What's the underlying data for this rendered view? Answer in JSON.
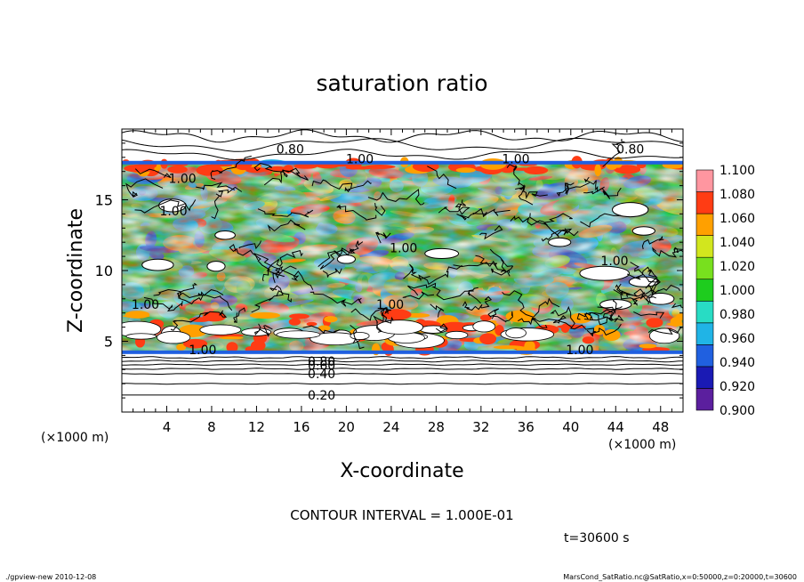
{
  "footer": {
    "left": "./gpview-new  2010-12-08",
    "right": "MarsCond_SatRatio.nc@SatRatio,x=0:50000,z=0:20000,t=30600"
  },
  "chart_data": {
    "type": "heatmap",
    "title": "saturation ratio",
    "xlabel": "X-coordinate",
    "ylabel": "Z-coordinate",
    "x_units_left": "(×1000 m)",
    "x_units_right": "(×1000 m)",
    "xlim": [
      0,
      50
    ],
    "ylim": [
      0,
      20
    ],
    "x_ticks": [
      4,
      8,
      12,
      16,
      20,
      24,
      28,
      32,
      36,
      40,
      44,
      48
    ],
    "y_ticks": [
      5,
      10,
      15
    ],
    "contour_interval_text": "CONTOUR INTERVAL = 1.000E-01",
    "time_text": "t=30600 s",
    "colorbar": {
      "levels": [
        0.9,
        0.92,
        0.94,
        0.96,
        0.98,
        1.0,
        1.02,
        1.04,
        1.06,
        1.08,
        1.1
      ],
      "labels": [
        "0.900",
        "0.920",
        "0.940",
        "0.960",
        "0.980",
        "1.000",
        "1.020",
        "1.040",
        "1.060",
        "1.080",
        "1.100"
      ],
      "colors": [
        "#5b1f9e",
        "#1a1ab4",
        "#2060e0",
        "#20b4e6",
        "#28dcc4",
        "#1ecc1e",
        "#78e01e",
        "#d2e61e",
        "#ffa000",
        "#ff3c14",
        "#ff96a0"
      ]
    },
    "contour_labels": [
      {
        "text": "0.20",
        "x": 17.8,
        "y": 1.2
      },
      {
        "text": "0.40",
        "x": 17.8,
        "y": 2.7
      },
      {
        "text": "0.60",
        "x": 17.8,
        "y": 3.3
      },
      {
        "text": "0.80",
        "x": 17.8,
        "y": 3.6
      },
      {
        "text": "0.80",
        "x": 15.0,
        "y": 18.6
      },
      {
        "text": "0.80",
        "x": 45.3,
        "y": 18.6
      },
      {
        "text": "1.00",
        "x": 21.2,
        "y": 17.9
      },
      {
        "text": "1.00",
        "x": 35.1,
        "y": 17.9
      },
      {
        "text": "1.00",
        "x": 5.4,
        "y": 16.5
      },
      {
        "text": "1.00",
        "x": 4.6,
        "y": 14.2
      },
      {
        "text": "1.00",
        "x": 25.1,
        "y": 11.6
      },
      {
        "text": "1.00",
        "x": 43.9,
        "y": 10.7
      },
      {
        "text": "1.00",
        "x": 2.1,
        "y": 7.6
      },
      {
        "text": "1.00",
        "x": 23.9,
        "y": 7.6
      },
      {
        "text": "1.00",
        "x": 7.2,
        "y": 4.4
      },
      {
        "text": "1.00",
        "x": 40.8,
        "y": 4.4
      }
    ]
  }
}
